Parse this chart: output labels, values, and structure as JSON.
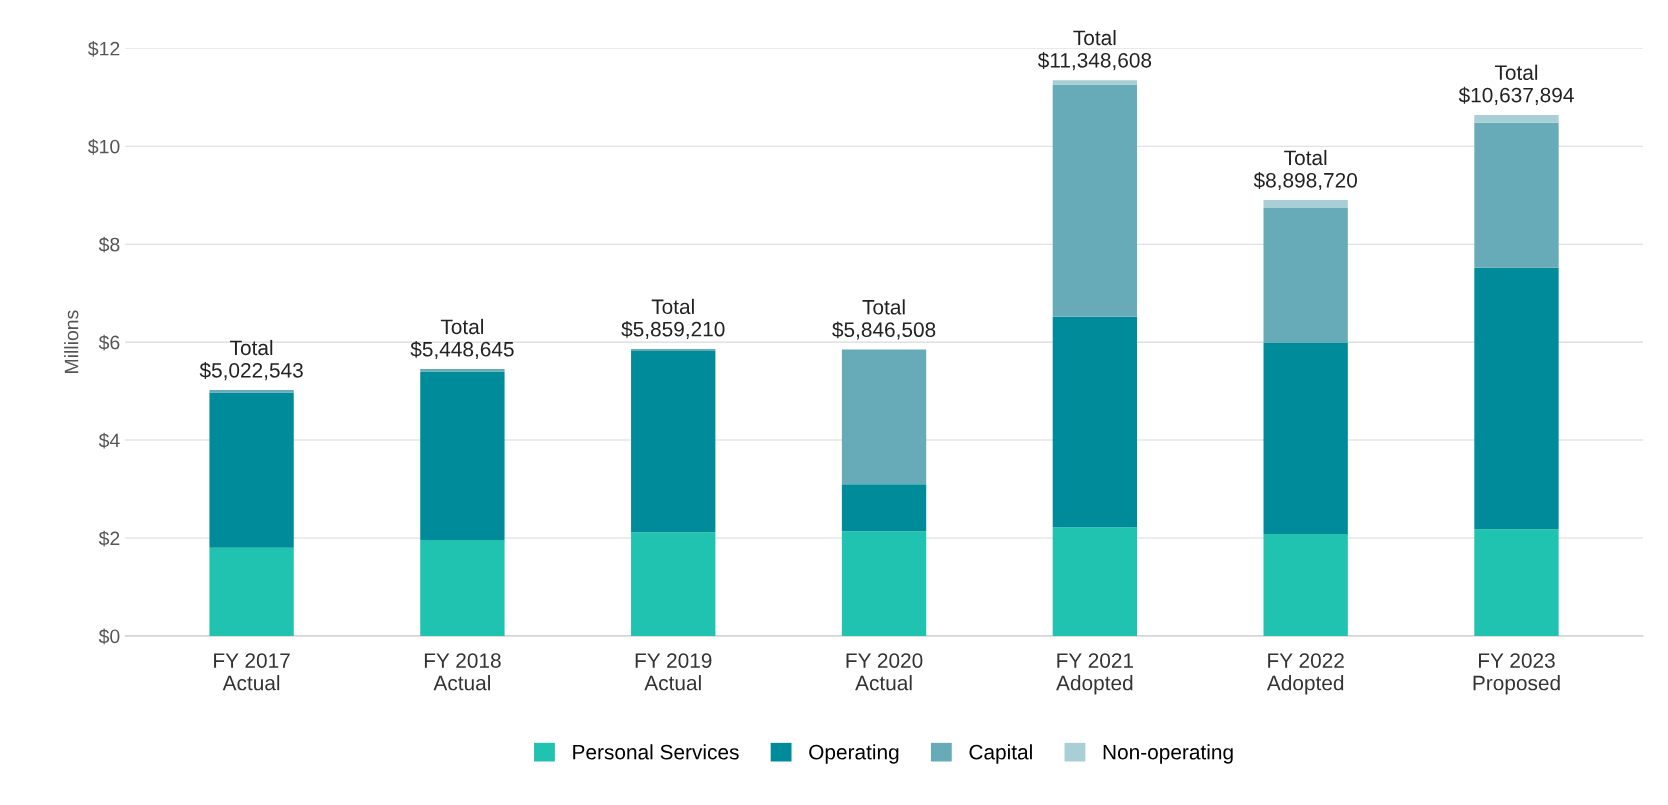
{
  "chart_data": {
    "type": "bar",
    "stacked": true,
    "ylabel": "Millions",
    "categories": [
      "FY 2017\nActual",
      "FY 2018\nActual",
      "FY 2019\nActual",
      "FY 2020\nActual",
      "FY 2021\nAdopted",
      "FY 2022\nAdopted",
      "FY 2023\nProposed"
    ],
    "series": [
      {
        "name": "Personal Services",
        "color": "#1fc3b0",
        "values": [
          1.8,
          1.96,
          2.12,
          2.14,
          2.22,
          2.08,
          2.18
        ]
      },
      {
        "name": "Operating",
        "color": "#008b9b",
        "values": [
          3.17,
          3.44,
          3.7,
          0.96,
          4.3,
          3.9,
          5.34
        ]
      },
      {
        "name": "Capital",
        "color": "#67aab8",
        "values": [
          0.05,
          0.05,
          0.04,
          2.75,
          4.74,
          2.76,
          2.96
        ]
      },
      {
        "name": "Non-operating",
        "color": "#a8cfd6",
        "values": [
          null,
          null,
          null,
          null,
          0.09,
          0.16,
          0.16
        ]
      }
    ],
    "totals": [
      "Total\n$5,022,543",
      "Total\n$5,448,645",
      "Total\n$5,859,210",
      "Total\n$5,846,508",
      "Total\n$11,348,608",
      "Total\n$8,898,720",
      "Total\n$10,637,894"
    ],
    "ylim": [
      0,
      12
    ],
    "yticks": [
      {
        "value": 0,
        "label": "$0"
      },
      {
        "value": 2,
        "label": "$2"
      },
      {
        "value": 4,
        "label": "$4"
      },
      {
        "value": 6,
        "label": "$6"
      },
      {
        "value": 8,
        "label": "$8"
      },
      {
        "value": 10,
        "label": "$10"
      },
      {
        "value": 12,
        "label": "$12"
      }
    ],
    "grid": "y",
    "legend": "bottom"
  }
}
